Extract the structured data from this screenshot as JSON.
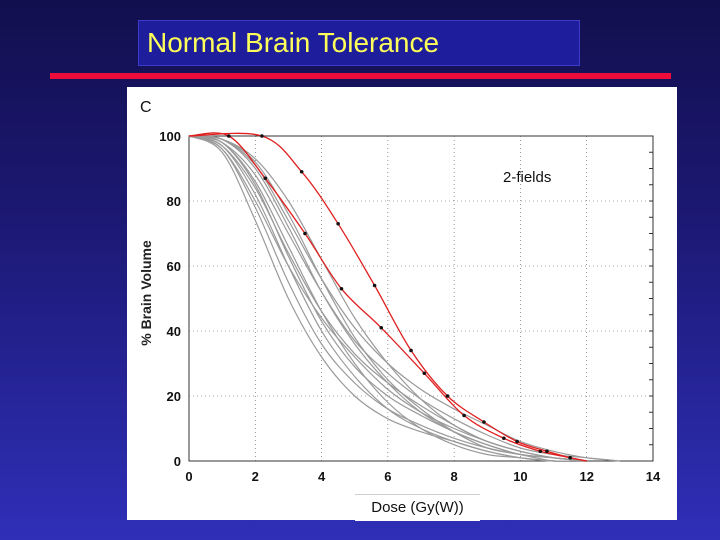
{
  "slide": {
    "title": "Normal Brain Tolerance",
    "panel_letter": "C",
    "caption": "Dose (Gy(W))"
  },
  "colors": {
    "background": "#1d1a78",
    "title_text": "#ffff5a",
    "title_box": "#1e1e9c",
    "rule": "#ee0d3a",
    "gray_series": "#9a9a9a",
    "red_series": "#e02020"
  },
  "chart_data": {
    "type": "line",
    "title": "",
    "annotation": "2-fields",
    "xlabel": "",
    "ylabel": "% Brain Volume",
    "xlim": [
      0,
      14
    ],
    "ylim": [
      0,
      100
    ],
    "xticks": [
      "0",
      "2",
      "4",
      "6",
      "8",
      "10",
      "12",
      "14"
    ],
    "yticks": [
      "0",
      "20",
      "40",
      "60",
      "80",
      "100"
    ],
    "grid": true,
    "series": [
      {
        "color": "gray",
        "x": [
          0,
          1,
          2,
          3,
          4,
          5,
          6,
          7,
          8,
          9,
          10,
          11,
          12
        ],
        "y": [
          100,
          98,
          86,
          66,
          46,
          30,
          18,
          10,
          5,
          2,
          1,
          0,
          0
        ]
      },
      {
        "color": "gray",
        "x": [
          0,
          1,
          2,
          3,
          4,
          5,
          6,
          7,
          8,
          9,
          10,
          11,
          12
        ],
        "y": [
          100,
          97,
          82,
          60,
          40,
          26,
          16,
          10,
          6,
          3,
          1,
          0,
          0
        ]
      },
      {
        "color": "gray",
        "x": [
          0,
          1,
          2,
          3,
          4,
          5,
          6,
          7,
          8,
          9,
          10,
          11,
          12
        ],
        "y": [
          100,
          99,
          92,
          76,
          56,
          38,
          25,
          16,
          9,
          4,
          2,
          0,
          0
        ]
      },
      {
        "color": "gray",
        "x": [
          0,
          1,
          2,
          3,
          4,
          5,
          6,
          7,
          8,
          9,
          10,
          11,
          12
        ],
        "y": [
          100,
          96,
          78,
          55,
          36,
          24,
          16,
          11,
          7,
          4,
          2,
          1,
          0
        ]
      },
      {
        "color": "gray",
        "x": [
          0,
          1,
          2,
          3,
          4,
          5,
          6,
          7,
          8,
          9,
          10,
          11,
          12,
          13
        ],
        "y": [
          100,
          98,
          88,
          70,
          52,
          37,
          27,
          19,
          13,
          8,
          4,
          2,
          1,
          0
        ]
      },
      {
        "color": "gray",
        "x": [
          0,
          1,
          2,
          3,
          4,
          5,
          6,
          7,
          8,
          9,
          10,
          11,
          12
        ],
        "y": [
          100,
          99,
          90,
          72,
          52,
          36,
          24,
          15,
          9,
          5,
          2,
          1,
          0
        ]
      },
      {
        "color": "gray",
        "x": [
          0,
          1,
          2,
          3,
          4,
          5,
          6,
          7,
          8,
          9,
          10,
          11,
          12
        ],
        "y": [
          100,
          95,
          74,
          50,
          32,
          20,
          13,
          9,
          6,
          3,
          1,
          0,
          0
        ]
      },
      {
        "color": "gray",
        "x": [
          0,
          1,
          2,
          3,
          4,
          5,
          6,
          7,
          8,
          9,
          10,
          11,
          12
        ],
        "y": [
          100,
          99,
          93,
          80,
          62,
          44,
          30,
          19,
          11,
          6,
          3,
          1,
          0
        ]
      },
      {
        "color": "gray",
        "x": [
          0,
          1,
          2,
          3,
          4,
          5,
          6,
          7,
          8,
          9,
          10,
          11,
          12
        ],
        "y": [
          100,
          97,
          84,
          64,
          46,
          33,
          24,
          17,
          11,
          6,
          3,
          1,
          0
        ]
      },
      {
        "color": "gray",
        "x": [
          0,
          1,
          2,
          3,
          4,
          5,
          6,
          7,
          8,
          9,
          10,
          11,
          12
        ],
        "y": [
          100,
          98,
          85,
          63,
          43,
          29,
          20,
          14,
          9,
          5,
          2,
          1,
          0
        ]
      },
      {
        "color": "gray",
        "x": [
          0,
          1,
          2,
          3,
          4,
          5,
          6,
          7,
          8,
          9,
          10,
          11,
          12
        ],
        "y": [
          100,
          96,
          80,
          60,
          44,
          32,
          22,
          15,
          10,
          6,
          3,
          1,
          0
        ]
      },
      {
        "color": "gray",
        "x": [
          0,
          1,
          2,
          3,
          4,
          5,
          6,
          7,
          8,
          9,
          10,
          11,
          12,
          13
        ],
        "y": [
          100,
          99,
          91,
          74,
          56,
          41,
          30,
          22,
          16,
          11,
          6,
          3,
          1,
          0
        ]
      },
      {
        "color": "red",
        "x": [
          0,
          1.2,
          2.3,
          3.5,
          4.6,
          5.8,
          7.1,
          8.3,
          9.5,
          10.6,
          11.5,
          12
        ],
        "y": [
          100,
          100,
          87,
          70,
          53,
          41,
          27,
          14,
          7,
          3,
          1,
          0
        ]
      },
      {
        "color": "red",
        "x": [
          0,
          2.2,
          3.4,
          4.5,
          5.6,
          6.7,
          7.8,
          8.9,
          9.9,
          10.8,
          11.5,
          12
        ],
        "y": [
          100,
          100,
          89,
          73,
          54,
          34,
          20,
          12,
          6,
          3,
          1,
          0
        ]
      }
    ]
  }
}
